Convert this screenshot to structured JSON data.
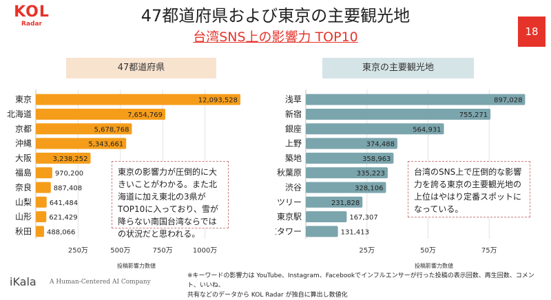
{
  "logo": {
    "main": "KOL",
    "sub": "Radar"
  },
  "title": "47都道府県および東京の主要観光地",
  "subtitle": "台湾SNS上の影響力 TOP10",
  "page_number": "18",
  "colors": {
    "accent": "#e6332a",
    "bar_left": "#f59d1b",
    "bar_right": "#7ba5ad"
  },
  "left_panel": {
    "header": "47都道府県",
    "note": "東京の影響力が圧倒的に大きいことがわかる。また北海道に加え東北の3県がTOP10に入っており、雪が降らない南国台湾ならではの状況だと思われる。"
  },
  "right_panel": {
    "header": "東京の主要観光地",
    "note": "台湾のSNS上で圧倒的な影響力を誇る東京の主要観光地の上位はやはり定番スポットになっている。"
  },
  "chart_data": [
    {
      "type": "bar",
      "orientation": "horizontal",
      "categories": [
        "東京",
        "北海道",
        "京都",
        "沖縄",
        "大阪",
        "福島",
        "奈良",
        "山梨",
        "山形",
        "秋田"
      ],
      "values": [
        12093528,
        7654769,
        5678768,
        5343661,
        3238252,
        970200,
        887408,
        641484,
        621429,
        488066
      ],
      "value_labels": [
        "12,093,528",
        "7,654,769",
        "5,678,768",
        "5,343,661",
        "3,238,252",
        "970,200",
        "887,408",
        "641,484",
        "621,429",
        "488,066"
      ],
      "xlim": [
        0,
        12500000
      ],
      "xticks": [
        2500000,
        5000000,
        7500000,
        10000000
      ],
      "xtick_labels": [
        "250万",
        "500万",
        "750万",
        "1000万"
      ],
      "xlabel": "投稿影響力数値",
      "grid": true
    },
    {
      "type": "bar",
      "orientation": "horizontal",
      "categories": [
        "浅草",
        "新宿",
        "銀座",
        "上野",
        "築地",
        "秋葉原",
        "渋谷",
        "スカイツリー",
        "東京駅",
        "東京タワー"
      ],
      "values": [
        897028,
        755271,
        564931,
        374488,
        358963,
        335223,
        328106,
        231828,
        167307,
        131413
      ],
      "value_labels": [
        "897,028",
        "755,271",
        "564,931",
        "374,488",
        "358,963",
        "335,223",
        "328,106",
        "231,828",
        "167,307",
        "131,413"
      ],
      "xlim": [
        0,
        1000000
      ],
      "xticks": [
        250000,
        500000,
        750000
      ],
      "xtick_labels": [
        "25万",
        "50万",
        "75万"
      ],
      "xlabel": "投稿影響力数値",
      "grid": true
    }
  ],
  "footnote": {
    "line1": "※キーワードの影響力は YouTube、Instagram、Facebookでインフルエンサーが行った投稿の表示回数、再生回数、コメント、いいね、",
    "line2": "共有などのデータから KOL Radar が独自に算出し数値化"
  },
  "brand": {
    "name": "iKala",
    "tagline": "A Human-Centered AI Company"
  }
}
